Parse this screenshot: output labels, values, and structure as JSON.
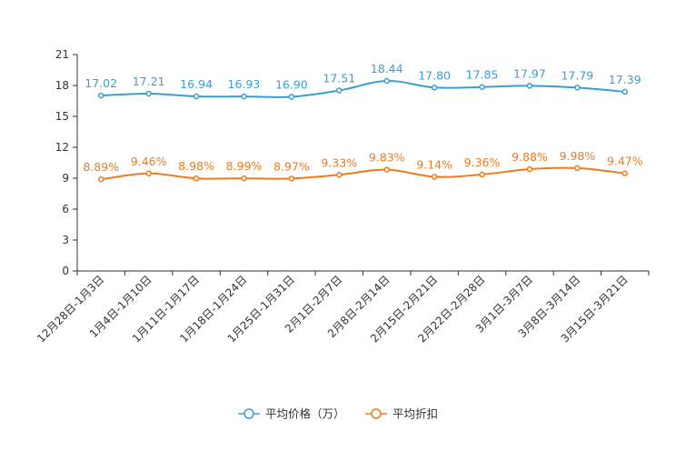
{
  "chart_data": {
    "type": "line",
    "categories": [
      "12月28日-1月3日",
      "1月4日-1月10日",
      "1月11日-1月17日",
      "1月18日-1月24日",
      "1月25日-1月31日",
      "2月1日-2月7日",
      "2月8日-2月14日",
      "2月15日-2月21日",
      "2月22日-2月28日",
      "3月1日-3月7日",
      "3月8日-3月14日",
      "3月15日-3月21日"
    ],
    "ylim": [
      0,
      21
    ],
    "yticks": [
      0,
      3,
      6,
      9,
      12,
      15,
      18,
      21
    ],
    "series": [
      {
        "name": "平均价格（万）",
        "color": "#3a9fd0",
        "values": [
          17.02,
          17.21,
          16.94,
          16.93,
          16.9,
          17.51,
          18.44,
          17.8,
          17.85,
          17.97,
          17.79,
          17.39
        ],
        "labels": [
          "17.02",
          "17.21",
          "16.94",
          "16.93",
          "16.90",
          "17.51",
          "18.44",
          "17.80",
          "17.85",
          "17.97",
          "17.79",
          "17.39"
        ]
      },
      {
        "name": "平均折扣",
        "color": "#f07a1e",
        "values": [
          8.89,
          9.46,
          8.98,
          8.99,
          8.97,
          9.33,
          9.83,
          9.14,
          9.36,
          9.88,
          9.98,
          9.47
        ],
        "labels": [
          "8.89%",
          "9.46%",
          "8.98%",
          "8.99%",
          "8.97%",
          "9.33%",
          "9.83%",
          "9.14%",
          "9.36%",
          "9.88%",
          "9.98%",
          "9.47%"
        ]
      }
    ]
  }
}
